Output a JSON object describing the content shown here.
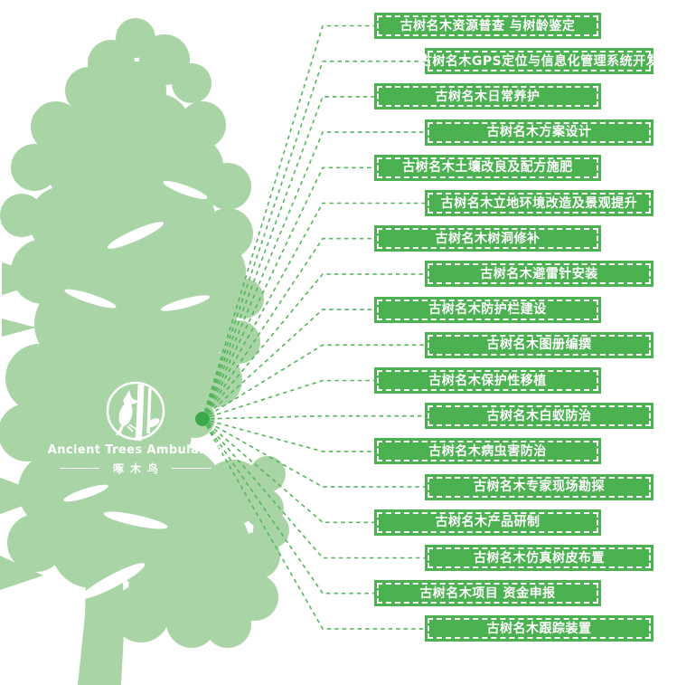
{
  "brand": {
    "name_en": "Ancient Trees Ambulance",
    "name_zh": "啄木鸟",
    "icon": "woodpecker-on-tree-trunk-in-circle"
  },
  "colors": {
    "tree_green": "#a9d5a6",
    "banner_green": "#4bb151",
    "line_green": "#55b65c",
    "hub_dot_green": "#3aa94a",
    "text_white": "#ffffff"
  },
  "services": [
    {
      "label": "古树名木资源普查 与树龄鉴定"
    },
    {
      "label": "古树名木GPS定位与信息化管理系统开发"
    },
    {
      "label": "古树名木日常养护"
    },
    {
      "label": "古树名木方案设计"
    },
    {
      "label": "古树名木土壤改良及配方施肥"
    },
    {
      "label": "古树名木立地环境改造及景观提升"
    },
    {
      "label": "古树名木树洞修补"
    },
    {
      "label": "古树名木避雷针安装"
    },
    {
      "label": "古树名木防护栏建设"
    },
    {
      "label": "古树名木图册编撰"
    },
    {
      "label": "古树名木保护性移植"
    },
    {
      "label": "古树名木白蚁防治"
    },
    {
      "label": "古树名木病虫害防治"
    },
    {
      "label": "古树名木专家现场勘探"
    },
    {
      "label": "古树名木产品研制"
    },
    {
      "label": "古树名木仿真树皮布置"
    },
    {
      "label": "古树名木项目 资金申报"
    },
    {
      "label": "古树名木跟踪装置"
    }
  ]
}
